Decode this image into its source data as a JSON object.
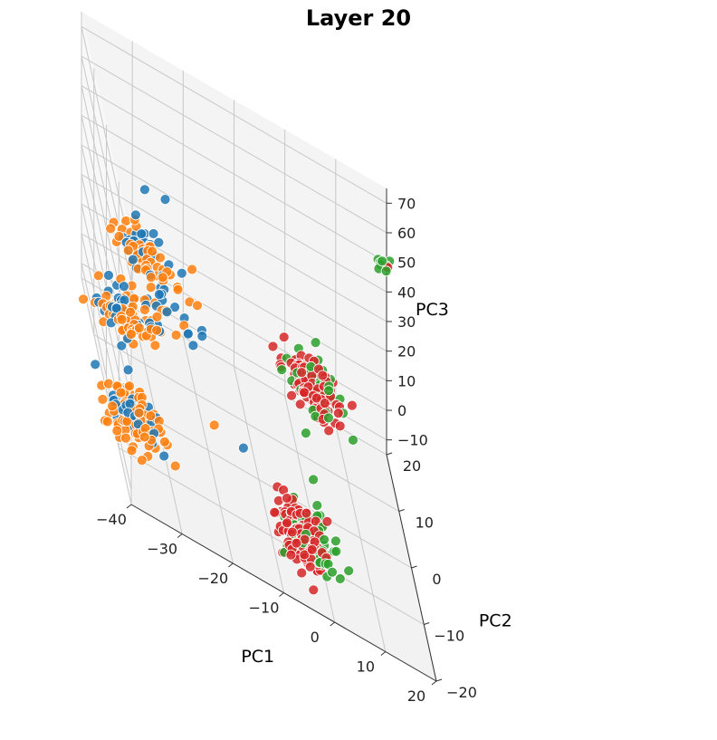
{
  "chart_data": {
    "type": "scatter",
    "projection": "3d",
    "title": "Layer 20",
    "xlabel": "PC1",
    "ylabel": "PC2",
    "zlabel": "PC3",
    "xlim": [
      -40,
      20
    ],
    "ylim": [
      -20,
      20
    ],
    "zlim": [
      -15,
      75
    ],
    "xticks": [
      "−40",
      "−30",
      "−20",
      "−10",
      "0",
      "10",
      "20"
    ],
    "yticks": [
      "−20",
      "−10",
      "0",
      "10",
      "20"
    ],
    "zticks": [
      "−10",
      "0",
      "10",
      "20",
      "30",
      "40",
      "50",
      "60",
      "70"
    ],
    "grid": true,
    "legend": "none",
    "colors": [
      "#1f77b4",
      "#ff7f0e",
      "#2ca02c",
      "#d62728"
    ],
    "clusters": [
      {
        "class": 0,
        "center": [
          -38,
          -12,
          3
        ],
        "spread": [
          2.5,
          2.5,
          3.5
        ],
        "count": 35
      },
      {
        "class": 1,
        "center": [
          -37,
          -12,
          2
        ],
        "spread": [
          3,
          2.5,
          3.5
        ],
        "count": 95
      },
      {
        "class": 0,
        "center": [
          -36,
          2,
          12
        ],
        "spread": [
          3,
          2,
          2.5
        ],
        "count": 30
      },
      {
        "class": 1,
        "center": [
          -35,
          2,
          11
        ],
        "spread": [
          3,
          2,
          2.5
        ],
        "count": 55
      },
      {
        "class": 0,
        "center": [
          -29,
          14,
          16
        ],
        "spread": [
          3,
          2,
          2.5
        ],
        "count": 30
      },
      {
        "class": 1,
        "center": [
          -29,
          14,
          15
        ],
        "spread": [
          3,
          2,
          2.5
        ],
        "count": 50
      },
      {
        "class": 0,
        "center": [
          -26,
          8,
          11
        ],
        "spread": [
          4,
          2,
          3
        ],
        "count": 20
      },
      {
        "class": 1,
        "center": [
          -27,
          8,
          10
        ],
        "spread": [
          4,
          2,
          3
        ],
        "count": 15
      },
      {
        "class": 3,
        "center": [
          -5,
          -14,
          -3
        ],
        "spread": [
          2.5,
          3,
          3
        ],
        "count": 130
      },
      {
        "class": 2,
        "center": [
          -3,
          -13,
          -3
        ],
        "spread": [
          2.5,
          3,
          3
        ],
        "count": 70
      },
      {
        "class": 3,
        "center": [
          4,
          15,
          2
        ],
        "spread": [
          2.5,
          2.5,
          2.5
        ],
        "count": 100
      },
      {
        "class": 2,
        "center": [
          5,
          15,
          2
        ],
        "spread": [
          2.5,
          2.5,
          2.5
        ],
        "count": 60
      },
      {
        "class": 2,
        "center": [
          17,
          6,
          72
        ],
        "spread": [
          1.5,
          1.5,
          1.5
        ],
        "count": 8
      },
      {
        "class": 3,
        "center": [
          17,
          6,
          73
        ],
        "spread": [
          0.5,
          0.5,
          0.5
        ],
        "count": 1
      }
    ],
    "outliers": [
      {
        "class": 0,
        "point": [
          -25,
          14,
          38
        ]
      },
      {
        "class": 0,
        "point": [
          -30,
          10,
          44
        ]
      },
      {
        "class": 0,
        "point": [
          -33,
          5,
          42
        ]
      },
      {
        "class": 2,
        "point": [
          -2,
          -11,
          14
        ]
      },
      {
        "class": 0,
        "point": [
          -15,
          -8,
          6
        ]
      },
      {
        "class": 1,
        "point": [
          -20,
          -5,
          3
        ]
      }
    ]
  }
}
